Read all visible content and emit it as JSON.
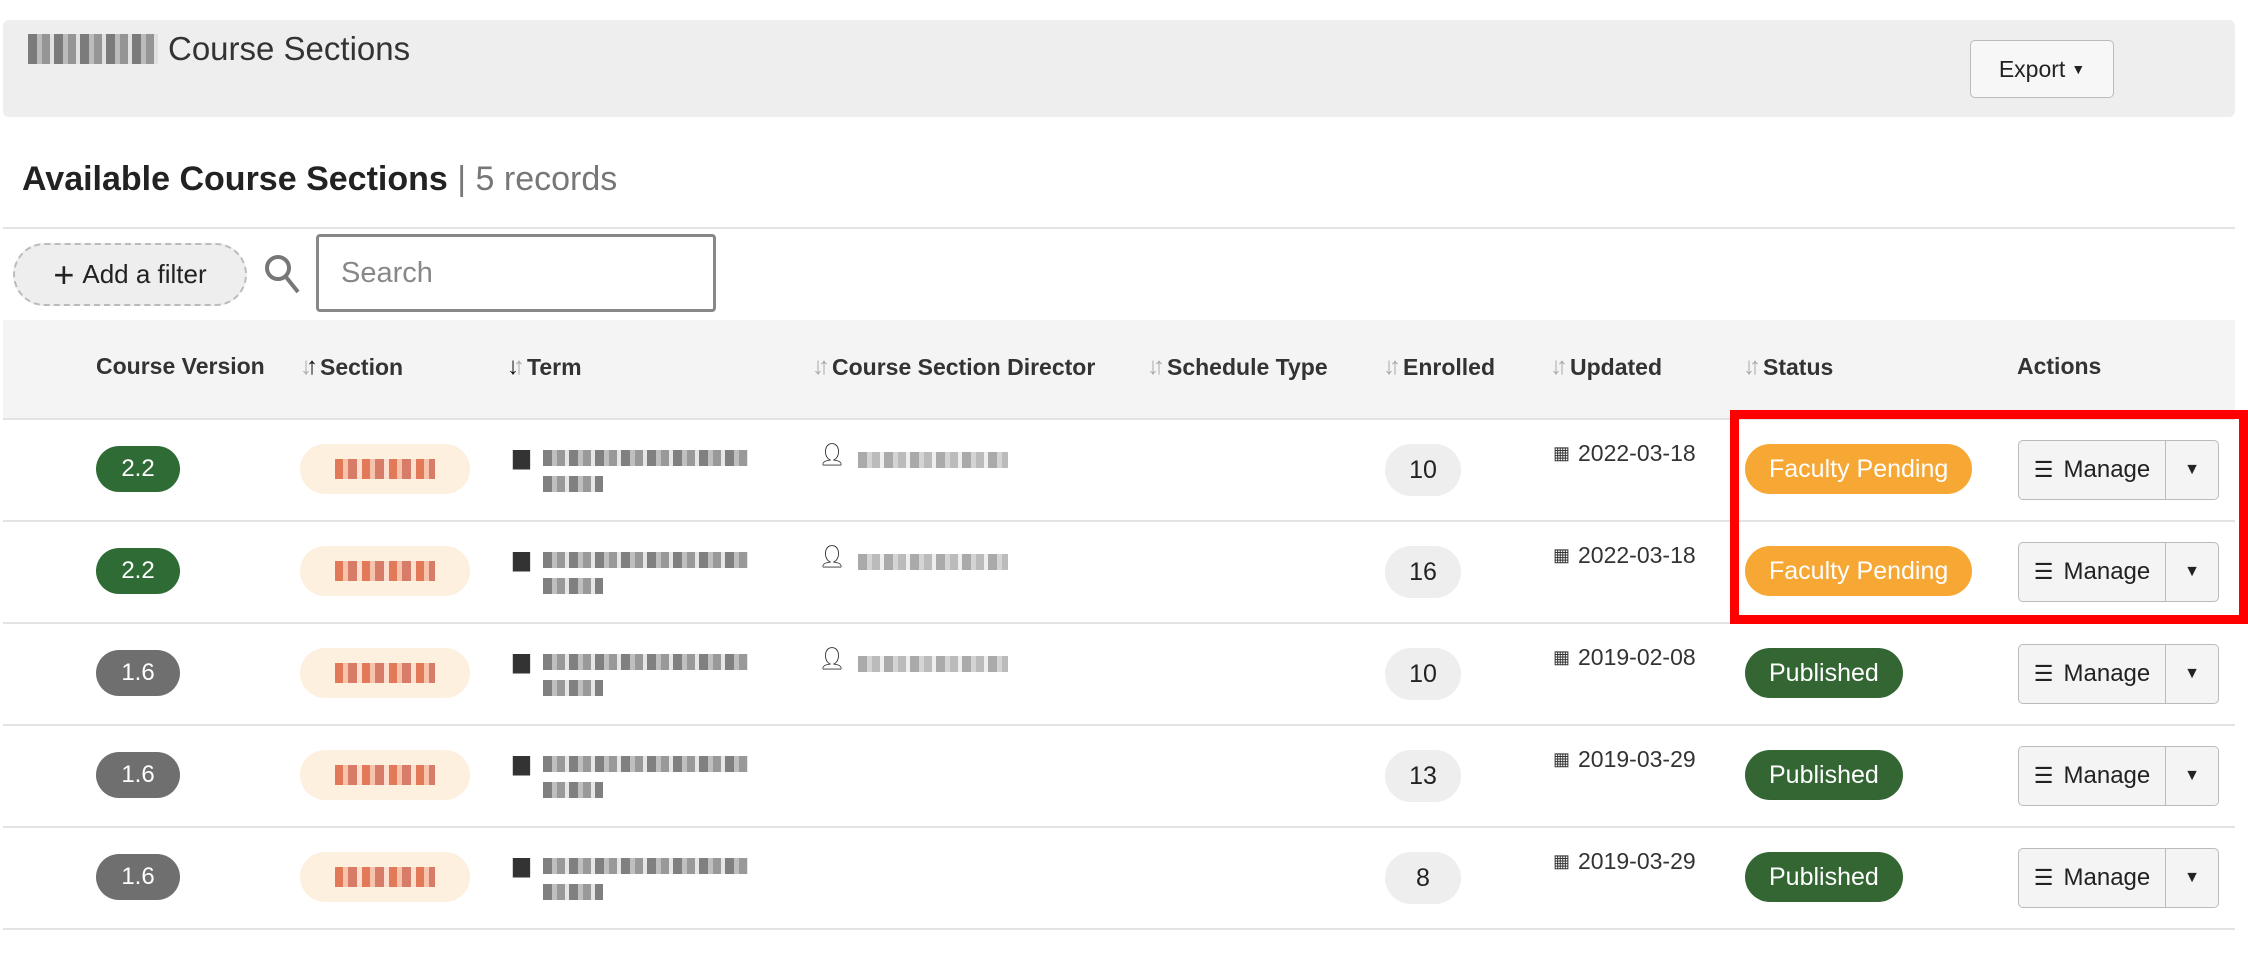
{
  "header": {
    "title": "Course Sections",
    "export_label": "Export"
  },
  "listing": {
    "title": "Available Course Sections",
    "count": "5 records"
  },
  "toolbar": {
    "add_filter_label": "Add a filter",
    "search_placeholder": "Search"
  },
  "columns": [
    "Course Version",
    "Section",
    "Term",
    "Course Section Director",
    "Schedule Type",
    "Enrolled",
    "Updated",
    "Status",
    "Actions"
  ],
  "rows": [
    {
      "version": "2.2",
      "enrolled": "10",
      "updated": "2022-03-18",
      "status": "Faculty Pending",
      "has_director": true
    },
    {
      "version": "2.2",
      "enrolled": "16",
      "updated": "2022-03-18",
      "status": "Faculty Pending",
      "has_director": true
    },
    {
      "version": "1.6",
      "enrolled": "10",
      "updated": "2019-02-08",
      "status": "Published",
      "has_director": true
    },
    {
      "version": "1.6",
      "enrolled": "13",
      "updated": "2019-03-29",
      "status": "Published",
      "has_director": false
    },
    {
      "version": "1.6",
      "enrolled": "8",
      "updated": "2019-03-29",
      "status": "Published",
      "has_director": false
    }
  ],
  "manage_label": "Manage",
  "colors": {
    "version_new": "#2e6b35",
    "version_old": "#6f6f6f",
    "pending": "#f7a733",
    "published": "#336633",
    "highlight": "#ff0000"
  }
}
